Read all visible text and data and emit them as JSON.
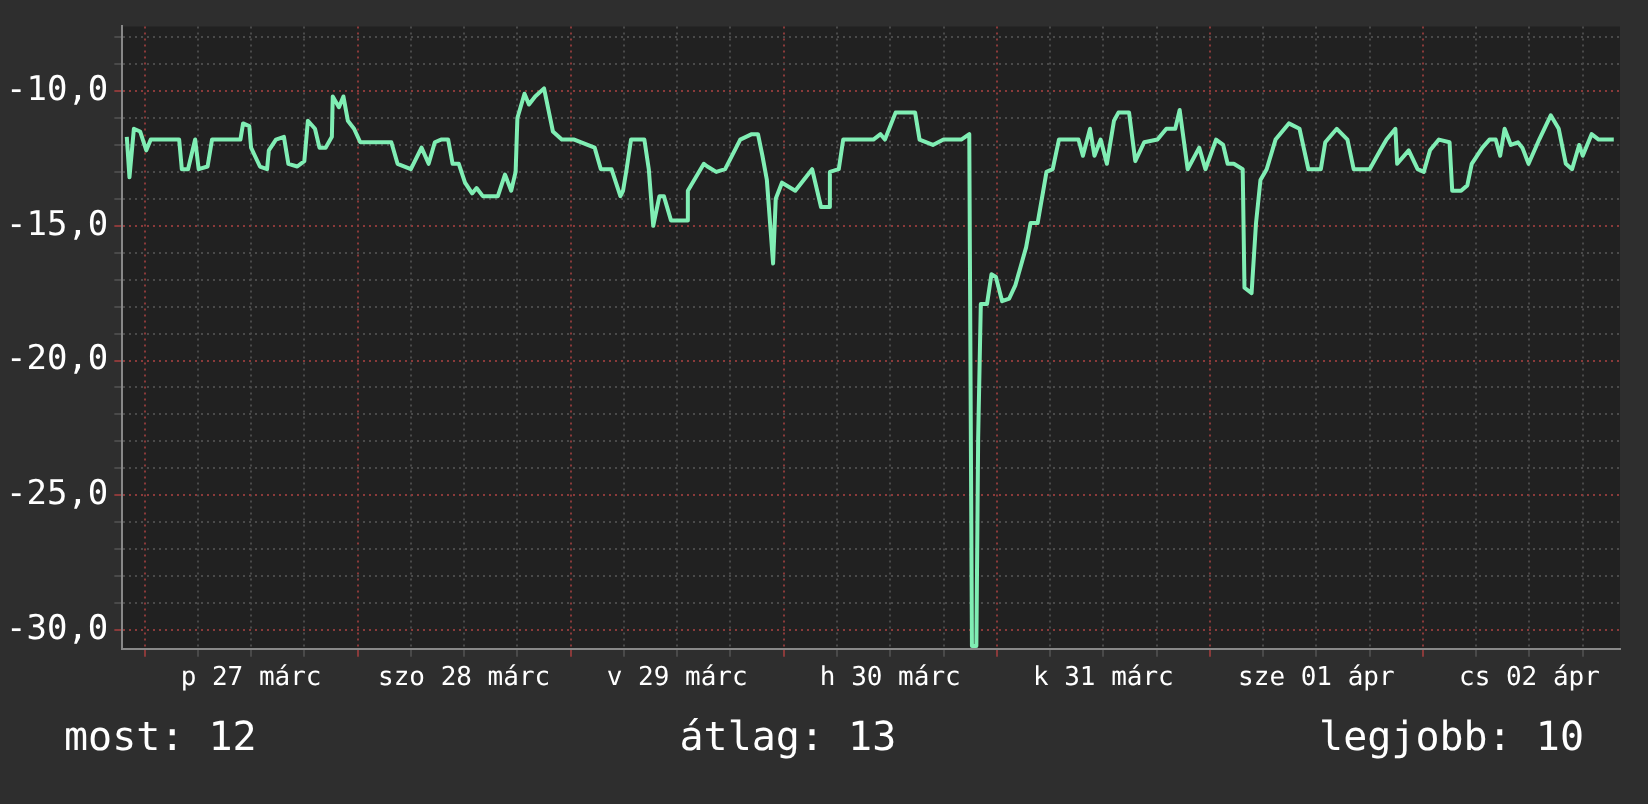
{
  "chart_data": {
    "type": "line",
    "annotations": [
      "most: 12",
      "átlag: 13",
      "legjobb: 10"
    ],
    "xlim": [
      "--03-26T21:30",
      "--04-02T22:12"
    ],
    "ylim": [
      -30.7,
      -7.6
    ],
    "xticks": [
      {
        "value": "--03-27T00:00",
        "label": null
      },
      {
        "value": "--03-27T06:00",
        "label": null
      },
      {
        "value": "--03-27T12:00",
        "label": "p 27 márc"
      },
      {
        "value": "--03-27T18:00",
        "label": null
      },
      {
        "value": "--03-28T00:00",
        "label": null
      },
      {
        "value": "--03-28T06:00",
        "label": null
      },
      {
        "value": "--03-28T12:00",
        "label": "szo 28 márc"
      },
      {
        "value": "--03-28T18:00",
        "label": null
      },
      {
        "value": "--03-29T00:00",
        "label": null
      },
      {
        "value": "--03-29T06:00",
        "label": null
      },
      {
        "value": "--03-29T12:00",
        "label": "v 29 márc"
      },
      {
        "value": "--03-29T18:00",
        "label": null
      },
      {
        "value": "--03-30T00:00",
        "label": null
      },
      {
        "value": "--03-30T06:00",
        "label": null
      },
      {
        "value": "--03-30T12:00",
        "label": "h 30 márc"
      },
      {
        "value": "--03-30T18:00",
        "label": null
      },
      {
        "value": "--03-31T00:00",
        "label": null
      },
      {
        "value": "--03-31T06:00",
        "label": null
      },
      {
        "value": "--03-31T12:00",
        "label": "k 31 márc"
      },
      {
        "value": "--03-31T18:00",
        "label": null
      },
      {
        "value": "--04-01T00:00",
        "label": null
      },
      {
        "value": "--04-01T06:00",
        "label": null
      },
      {
        "value": "--04-01T12:00",
        "label": "sze 01 ápr"
      },
      {
        "value": "--04-01T18:00",
        "label": null
      },
      {
        "value": "--04-02T00:00",
        "label": null
      },
      {
        "value": "--04-02T06:00",
        "label": null
      },
      {
        "value": "--04-02T12:00",
        "label": "cs 02 ápr"
      },
      {
        "value": "--04-02T18:00",
        "label": null
      }
    ],
    "yticks": [
      {
        "value": -30,
        "label": "-30,0"
      },
      {
        "value": -29,
        "label": null
      },
      {
        "value": -28,
        "label": null
      },
      {
        "value": -27,
        "label": null
      },
      {
        "value": -26,
        "label": null
      },
      {
        "value": -25,
        "label": "-25,0"
      },
      {
        "value": -24,
        "label": null
      },
      {
        "value": -23,
        "label": null
      },
      {
        "value": -22,
        "label": null
      },
      {
        "value": -21,
        "label": null
      },
      {
        "value": -20,
        "label": "-20,0"
      },
      {
        "value": -19,
        "label": null
      },
      {
        "value": -18,
        "label": null
      },
      {
        "value": -17,
        "label": null
      },
      {
        "value": -16,
        "label": null
      },
      {
        "value": -15,
        "label": "-15,0"
      },
      {
        "value": -14,
        "label": null
      },
      {
        "value": -13,
        "label": null
      },
      {
        "value": -12,
        "label": null
      },
      {
        "value": -11,
        "label": null
      },
      {
        "value": -10,
        "label": "-10,0"
      },
      {
        "value": -9,
        "label": null
      },
      {
        "value": -8,
        "label": null
      }
    ],
    "grid": true,
    "legend": false,
    "marker": "none",
    "line_style": "solid",
    "series": [
      {
        "color": "#80eeb4",
        "x": [
          "--03-26T22:00",
          "--03-26T22:18",
          "--03-26T22:48",
          "--03-26T23:30",
          "--03-27T00:12",
          "--03-27T00:42",
          "--03-27T03:54",
          "--03-27T04:12",
          "--03-27T04:54",
          "--03-27T05:42",
          "--03-27T06:06",
          "--03-27T07:06",
          "--03-27T07:36",
          "--03-27T10:48",
          "--03-27T11:06",
          "--03-27T11:48",
          "--03-27T12:00",
          "--03-27T13:00",
          "--03-27T13:48",
          "--03-27T14:00",
          "--03-27T14:48",
          "--03-27T15:42",
          "--03-27T16:12",
          "--03-27T17:12",
          "--03-27T18:00",
          "--03-27T18:24",
          "--03-27T19:12",
          "--03-27T19:42",
          "--03-27T20:24",
          "--03-27T21:06",
          "--03-27T21:12",
          "--03-27T21:54",
          "--03-27T22:24",
          "--03-27T22:54",
          "--03-27T23:36",
          "--03-28T00:18",
          "--03-28T03:48",
          "--03-28T04:30",
          "--03-28T06:00",
          "--03-28T07:12",
          "--03-28T08:00",
          "--03-28T08:42",
          "--03-28T09:24",
          "--03-28T10:12",
          "--03-28T10:42",
          "--03-28T11:24",
          "--03-28T12:06",
          "--03-28T12:54",
          "--03-28T13:24",
          "--03-28T14:06",
          "--03-28T15:48",
          "--03-28T16:36",
          "--03-28T17:18",
          "--03-28T17:48",
          "--03-28T18:00",
          "--03-28T18:48",
          "--03-28T19:18",
          "--03-28T20:00",
          "--03-28T21:00",
          "--03-28T22:00",
          "--03-28T23:00",
          "--03-29T00:24",
          "--03-29T02:42",
          "--03-29T03:24",
          "--03-29T04:36",
          "--03-29T05:36",
          "--03-29T05:54",
          "--03-29T06:18",
          "--03-29T06:48",
          "--03-29T08:18",
          "--03-29T08:48",
          "--03-29T09:18",
          "--03-29T10:00",
          "--03-29T10:30",
          "--03-29T11:18",
          "--03-29T13:00",
          "--03-29T13:12",
          "--03-29T15:00",
          "--03-29T15:24",
          "--03-29T16:24",
          "--03-29T17:24",
          "--03-29T19:06",
          "--03-29T20:24",
          "--03-29T21:06",
          "--03-29T21:36",
          "--03-29T22:06",
          "--03-29T22:48",
          "--03-29T23:06",
          "--03-29T23:48",
          "--03-30T01:18",
          "--03-30T03:12",
          "--03-30T04:12",
          "--03-30T05:00",
          "--03-30T05:12",
          "--03-30T06:12",
          "--03-30T06:42",
          "--03-30T10:06",
          "--03-30T10:54",
          "--03-30T11:24",
          "--03-30T12:36",
          "--03-30T14:48",
          "--03-30T15:18",
          "--03-30T16:48",
          "--03-30T18:00",
          "--03-30T20:00",
          "--03-30T20:54",
          "--03-30T21:12",
          "--03-30T21:42",
          "--03-30T21:54",
          "--03-30T22:12",
          "--03-30T22:54",
          "--03-30T23:24",
          "--03-30T23:54",
          "--03-31T00:36",
          "--03-31T01:24",
          "--03-31T02:06",
          "--03-31T03:18",
          "--03-31T03:48",
          "--03-31T04:36",
          "--03-31T05:36",
          "--03-31T06:18",
          "--03-31T07:00",
          "--03-31T09:12",
          "--03-31T09:42",
          "--03-31T10:30",
          "--03-31T11:00",
          "--03-31T11:42",
          "--03-31T12:24",
          "--03-31T13:12",
          "--03-31T13:42",
          "--03-31T14:54",
          "--03-31T15:36",
          "--03-31T16:36",
          "--03-31T18:06",
          "--03-31T19:06",
          "--03-31T20:06",
          "--03-31T20:36",
          "--03-31T21:30",
          "--03-31T22:48",
          "--03-31T23:30",
          "--04-01T00:42",
          "--04-01T01:30",
          "--04-01T02:00",
          "--04-01T02:42",
          "--04-01T03:42",
          "--04-01T03:54",
          "--04-01T04:42",
          "--04-01T05:12",
          "--04-01T05:42",
          "--04-01T06:24",
          "--04-01T07:24",
          "--04-01T08:54",
          "--04-01T10:06",
          "--04-01T11:06",
          "--04-01T12:30",
          "--04-01T13:00",
          "--04-01T14:18",
          "--04-01T15:30",
          "--04-01T16:12",
          "--04-01T18:00",
          "--04-01T19:12",
          "--04-01T19:54",
          "--04-01T20:54",
          "--04-01T21:06",
          "--04-01T22:24",
          "--04-01T23:24",
          "--04-02T00:06",
          "--04-02T00:48",
          "--04-02T01:48",
          "--04-02T03:00",
          "--04-02T03:18",
          "--04-02T04:18",
          "--04-02T05:00",
          "--04-02T05:30",
          "--04-02T06:42",
          "--04-02T07:30",
          "--04-02T08:12",
          "--04-02T08:42",
          "--04-02T09:12",
          "--04-02T09:54",
          "--04-02T10:42",
          "--04-02T11:12",
          "--04-02T11:54",
          "--04-02T13:06",
          "--04-02T14:24",
          "--04-02T15:18",
          "--04-02T16:06",
          "--04-02T16:48",
          "--04-02T17:36",
          "--04-02T18:00",
          "--04-02T19:00",
          "--04-02T19:48",
          "--04-02T21:30"
        ],
        "values": [
          -11.7,
          -13.2,
          -11.4,
          -11.5,
          -12.2,
          -11.8,
          -11.8,
          -12.9,
          -12.9,
          -11.8,
          -12.9,
          -12.8,
          -11.8,
          -11.8,
          -11.2,
          -11.3,
          -12.1,
          -12.8,
          -12.9,
          -12.2,
          -11.8,
          -11.7,
          -12.7,
          -12.8,
          -12.6,
          -11.1,
          -11.4,
          -12.1,
          -12.1,
          -11.7,
          -10.2,
          -10.6,
          -10.2,
          -11.1,
          -11.4,
          -11.9,
          -11.9,
          -12.7,
          -12.9,
          -12.1,
          -12.7,
          -11.9,
          -11.8,
          -11.8,
          -12.7,
          -12.7,
          -13.4,
          -13.8,
          -13.6,
          -13.9,
          -13.9,
          -13.1,
          -13.7,
          -13.0,
          -11.0,
          -10.1,
          -10.5,
          -10.2,
          -9.9,
          -11.5,
          -11.8,
          -11.8,
          -12.1,
          -12.9,
          -12.9,
          -13.9,
          -13.7,
          -12.9,
          -11.8,
          -11.8,
          -12.9,
          -15.0,
          -13.9,
          -13.9,
          -14.8,
          -14.8,
          -13.7,
          -12.7,
          -12.8,
          -13.0,
          -12.9,
          -11.8,
          -11.6,
          -11.6,
          -12.4,
          -13.3,
          -16.4,
          -14.0,
          -13.4,
          -13.7,
          -12.9,
          -14.3,
          -14.3,
          -13.0,
          -12.9,
          -11.8,
          -11.8,
          -11.6,
          -11.8,
          -10.8,
          -10.8,
          -11.8,
          -12.0,
          -11.8,
          -11.8,
          -11.6,
          -30.6,
          -30.6,
          -22.9,
          -17.9,
          -17.9,
          -16.8,
          -16.9,
          -17.8,
          -17.7,
          -17.2,
          -15.8,
          -14.9,
          -14.9,
          -13.0,
          -12.9,
          -11.8,
          -11.8,
          -12.4,
          -11.4,
          -12.4,
          -11.8,
          -12.7,
          -11.1,
          -10.8,
          -10.8,
          -12.6,
          -11.9,
          -11.8,
          -11.4,
          -11.4,
          -10.7,
          -12.9,
          -12.1,
          -12.9,
          -11.8,
          -12.0,
          -12.7,
          -12.7,
          -12.9,
          -17.3,
          -17.5,
          -14.9,
          -13.3,
          -12.9,
          -11.8,
          -11.2,
          -11.4,
          -12.9,
          -12.9,
          -11.9,
          -11.4,
          -11.8,
          -12.9,
          -12.9,
          -12.2,
          -11.8,
          -11.4,
          -12.7,
          -12.2,
          -12.9,
          -13.0,
          -12.2,
          -11.8,
          -11.9,
          -13.7,
          -13.7,
          -13.5,
          -12.7,
          -12.1,
          -11.8,
          -11.8,
          -12.4,
          -11.4,
          -12.0,
          -11.9,
          -12.1,
          -12.7,
          -11.8,
          -10.9,
          -11.4,
          -12.7,
          -12.9,
          -12.0,
          -12.4,
          -11.6,
          -11.8,
          -11.8
        ]
      }
    ]
  }
}
